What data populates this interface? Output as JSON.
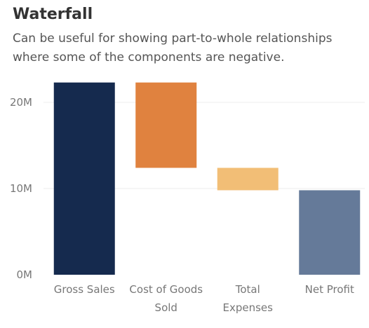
{
  "title": "Waterfall",
  "subtitle": "Can be useful for showing part-to-whole relationships where some of the components are negative.",
  "chart_data": {
    "type": "bar",
    "subtype": "waterfall",
    "categories": [
      [
        "Gross Sales"
      ],
      [
        "Cost of Goods",
        "Sold"
      ],
      [
        "Total",
        "Expenses"
      ],
      [
        "Net Profit"
      ]
    ],
    "bars": [
      {
        "start": 0,
        "end": 22.3,
        "color": "#152a4e"
      },
      {
        "start": 22.3,
        "end": 12.4,
        "color": "#e0823f"
      },
      {
        "start": 12.4,
        "end": 9.8,
        "color": "#f2be76"
      },
      {
        "start": 0,
        "end": 9.8,
        "color": "#657a99"
      }
    ],
    "unit": "M",
    "yticks": [
      0,
      10,
      20
    ],
    "ytick_labels": [
      "0M",
      "10M",
      "20M"
    ],
    "ylim": [
      0,
      23.5
    ],
    "grid": true
  }
}
